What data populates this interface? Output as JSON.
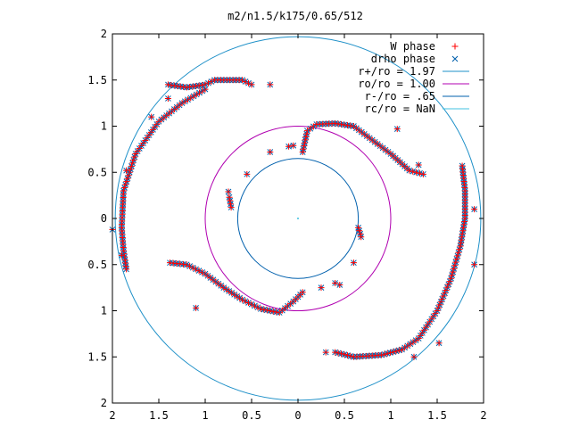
{
  "chart_data": {
    "type": "scatter",
    "title": "m2/n1.5/k175/0.65/512",
    "xlabel": "",
    "ylabel": "",
    "xlim": [
      -2,
      2
    ],
    "ylim": [
      -2,
      2
    ],
    "grid": false,
    "legend_position": "top-right",
    "x_ticks": [
      {
        "value": -2,
        "label": "2"
      },
      {
        "value": -1.5,
        "label": "1.5"
      },
      {
        "value": -1,
        "label": "1"
      },
      {
        "value": -0.5,
        "label": "0.5"
      },
      {
        "value": 0,
        "label": "0"
      },
      {
        "value": 0.5,
        "label": "0.5"
      },
      {
        "value": 1,
        "label": "1"
      },
      {
        "value": 1.5,
        "label": "1.5"
      },
      {
        "value": 2,
        "label": "2"
      }
    ],
    "y_ticks": [
      {
        "value": 2,
        "label": "2"
      },
      {
        "value": 1.5,
        "label": "1.5"
      },
      {
        "value": 1,
        "label": "1"
      },
      {
        "value": 0.5,
        "label": "0.5"
      },
      {
        "value": 0,
        "label": "0"
      },
      {
        "value": -0.5,
        "label": "0.5"
      },
      {
        "value": -1,
        "label": "1"
      },
      {
        "value": -1.5,
        "label": "1.5"
      },
      {
        "value": -2,
        "label": "2"
      }
    ],
    "series": [
      {
        "name": "W phase",
        "marker": "plus",
        "color": "#ff0000"
      },
      {
        "name": "drho phase",
        "marker": "cross",
        "color": "#0060ad"
      },
      {
        "name": "r+/ro = 1.97",
        "type": "circle",
        "radius": 1.97,
        "color": "#1e90c8"
      },
      {
        "name": "ro/ro = 1.00",
        "type": "circle",
        "radius": 1.0,
        "color": "#b000b0"
      },
      {
        "name": "r-/ro = .65",
        "type": "circle",
        "radius": 0.65,
        "color": "#0060ad"
      },
      {
        "name": "rc/ro = NaN",
        "type": "circle",
        "radius": null,
        "color": "#40c0e0"
      }
    ],
    "arms": [
      {
        "points": [
          [
            -1.4,
            1.45
          ],
          [
            -1.2,
            1.42
          ],
          [
            -1.0,
            1.45
          ],
          [
            -0.9,
            1.5
          ],
          [
            -0.8,
            1.5
          ],
          [
            -0.6,
            1.5
          ],
          [
            -0.5,
            1.45
          ]
        ],
        "gap": 0.035
      },
      {
        "points": [
          [
            -1.0,
            1.4
          ],
          [
            -1.25,
            1.25
          ],
          [
            -1.5,
            1.05
          ],
          [
            -1.75,
            0.7
          ],
          [
            -1.88,
            0.3
          ],
          [
            -1.9,
            -0.1
          ],
          [
            -1.88,
            -0.35
          ],
          [
            -1.85,
            -0.55
          ]
        ],
        "gap": 0.035
      },
      {
        "points": [
          [
            0.05,
            0.72
          ],
          [
            0.1,
            0.95
          ],
          [
            0.2,
            1.02
          ],
          [
            0.4,
            1.03
          ],
          [
            0.6,
            1.0
          ],
          [
            0.8,
            0.85
          ],
          [
            1.0,
            0.7
          ],
          [
            1.2,
            0.52
          ],
          [
            1.35,
            0.48
          ]
        ],
        "gap": 0.035
      },
      {
        "points": [
          [
            -0.72,
            0.12
          ],
          [
            -0.74,
            0.23
          ]
        ],
        "gap": 0.035
      },
      {
        "points": [
          [
            1.77,
            0.57
          ],
          [
            1.8,
            0.3
          ],
          [
            1.8,
            0.0
          ],
          [
            1.75,
            -0.3
          ],
          [
            1.65,
            -0.65
          ],
          [
            1.5,
            -1.0
          ],
          [
            1.3,
            -1.3
          ],
          [
            1.12,
            -1.42
          ],
          [
            0.9,
            -1.48
          ],
          [
            0.6,
            -1.5
          ],
          [
            0.4,
            -1.45
          ]
        ],
        "gap": 0.035
      },
      {
        "points": [
          [
            -1.38,
            -0.48
          ],
          [
            -1.2,
            -0.5
          ],
          [
            -1.0,
            -0.6
          ],
          [
            -0.8,
            -0.75
          ],
          [
            -0.6,
            -0.88
          ],
          [
            -0.4,
            -0.98
          ],
          [
            -0.2,
            -1.02
          ],
          [
            -0.05,
            -0.9
          ],
          [
            0.05,
            -0.8
          ]
        ],
        "gap": 0.035
      },
      {
        "points": [
          [
            0.65,
            -0.1
          ],
          [
            0.68,
            -0.2
          ]
        ],
        "gap": 0.035
      }
    ],
    "points": [
      [
        -0.3,
        1.45
      ],
      [
        -1.4,
        1.3
      ],
      [
        -1.58,
        1.1
      ],
      [
        -1.85,
        0.52
      ],
      [
        -2.0,
        -0.12
      ],
      [
        -1.9,
        -0.4
      ],
      [
        -0.55,
        0.48
      ],
      [
        -0.75,
        0.29
      ],
      [
        -0.3,
        0.72
      ],
      [
        -0.1,
        0.78
      ],
      [
        -0.05,
        0.79
      ],
      [
        1.07,
        0.97
      ],
      [
        1.3,
        0.58
      ],
      [
        1.9,
        0.1
      ],
      [
        1.9,
        -0.5
      ],
      [
        1.52,
        -1.35
      ],
      [
        1.25,
        -1.5
      ],
      [
        0.3,
        -1.45
      ],
      [
        0.6,
        -0.48
      ],
      [
        0.25,
        -0.75
      ],
      [
        0.45,
        -0.72
      ],
      [
        -1.1,
        -0.97
      ],
      [
        0.4,
        -0.7
      ]
    ]
  }
}
